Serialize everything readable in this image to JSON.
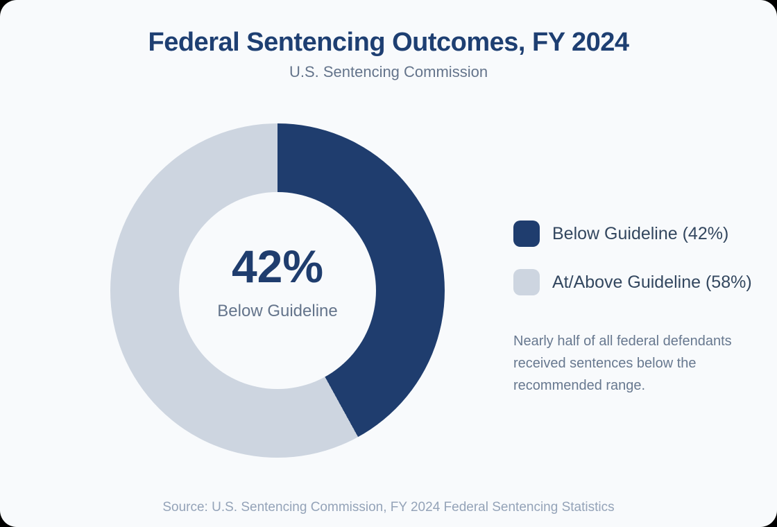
{
  "header": {
    "title": "Federal Sentencing Outcomes, FY 2024",
    "subtitle": "U.S. Sentencing Commission"
  },
  "donut": {
    "center_value": "42%",
    "center_label": "Below Guideline"
  },
  "legend": {
    "items": [
      {
        "label": "Below Guideline (42%)",
        "color": "#1f3d6e"
      },
      {
        "label": "At/Above Guideline (58%)",
        "color": "#cdd5e0"
      }
    ]
  },
  "annotation": {
    "text": "Nearly half of all federal defendants received sentences below the recommended range."
  },
  "footer": {
    "source": "Source: U.S. Sentencing Commission, FY 2024 Federal Sentencing Statistics"
  },
  "colors": {
    "accent_navy": "#1f3d6e",
    "slice_light": "#cdd5e0",
    "card_background": "#f8fafc",
    "title_text": "#1e3f72",
    "muted_text": "#67788f",
    "legend_text": "#33475f",
    "source_text": "#94a3b8"
  },
  "chart_data": {
    "type": "pie",
    "donut": true,
    "title": "Federal Sentencing Outcomes, FY 2024",
    "subtitle": "U.S. Sentencing Commission",
    "start_angle_deg": 0,
    "direction": "clockwise",
    "slices": [
      {
        "label": "Below Guideline",
        "value_pct": 42,
        "color": "#1f3d6e"
      },
      {
        "label": "At/Above Guideline",
        "value_pct": 58,
        "color": "#cdd5e0"
      }
    ],
    "center_label": "42%",
    "center_sublabel": "Below Guideline",
    "legend_position": "right",
    "annotation": "Nearly half of all federal defendants received sentences below the recommended range.",
    "source": "Source: U.S. Sentencing Commission, FY 2024 Federal Sentencing Statistics"
  }
}
